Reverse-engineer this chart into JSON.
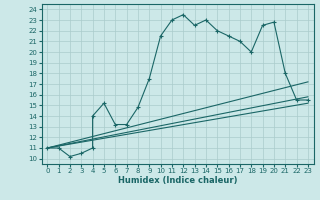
{
  "xlabel": "Humidex (Indice chaleur)",
  "bg_color": "#cce8e8",
  "line_color": "#1a6666",
  "grid_color": "#aacccc",
  "xlim": [
    -0.5,
    23.5
  ],
  "ylim": [
    9.5,
    24.5
  ],
  "xticks": [
    0,
    1,
    2,
    3,
    4,
    5,
    6,
    7,
    8,
    9,
    10,
    11,
    12,
    13,
    14,
    15,
    16,
    17,
    18,
    19,
    20,
    21,
    22,
    23
  ],
  "yticks": [
    10,
    11,
    12,
    13,
    14,
    15,
    16,
    17,
    18,
    19,
    20,
    21,
    22,
    23,
    24
  ],
  "main_x": [
    0,
    1,
    2,
    3,
    4,
    4,
    5,
    6,
    7,
    8,
    9,
    10,
    11,
    12,
    13,
    14,
    15,
    16,
    17,
    18,
    19,
    20,
    21,
    22,
    23
  ],
  "main_y": [
    11,
    11,
    10.2,
    10.5,
    11,
    14,
    15.2,
    13.2,
    13.2,
    14.8,
    17.5,
    21.5,
    23.0,
    23.5,
    22.5,
    23.0,
    22.0,
    21.5,
    21.0,
    20.0,
    22.5,
    22.8,
    18.0,
    15.5,
    15.5
  ],
  "ref_lines": [
    {
      "x": [
        0,
        23
      ],
      "y": [
        11,
        17.2
      ]
    },
    {
      "x": [
        0,
        23
      ],
      "y": [
        11,
        15.8
      ]
    },
    {
      "x": [
        0,
        23
      ],
      "y": [
        11,
        15.2
      ]
    }
  ]
}
